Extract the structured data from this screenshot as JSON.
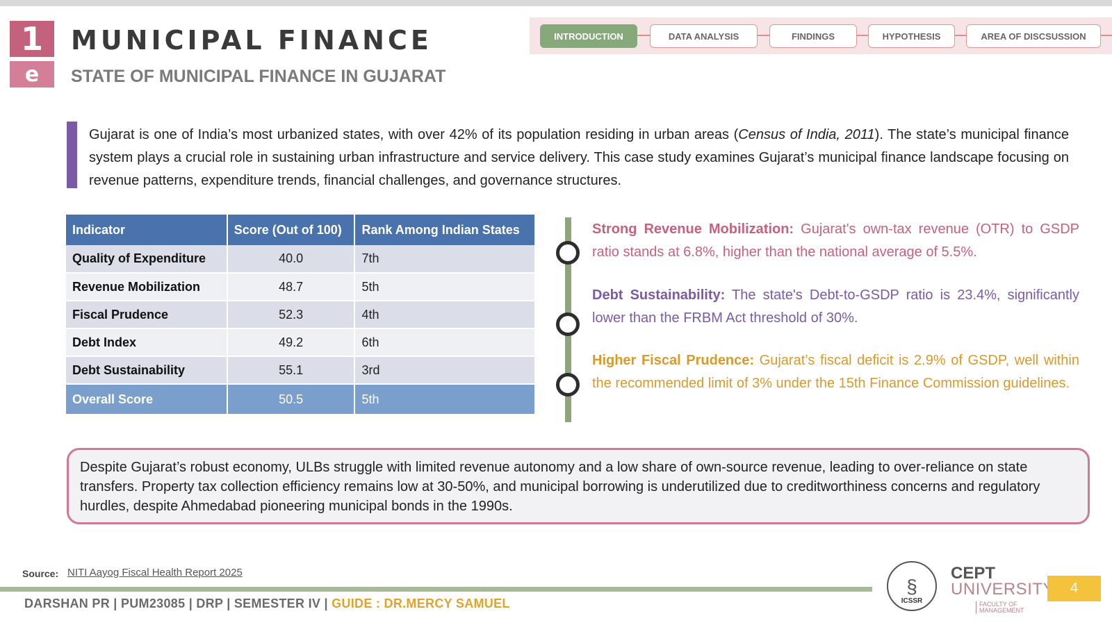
{
  "header": {
    "logo_top": "1",
    "logo_bottom": "e",
    "title": "MUNICIPAL FINANCE",
    "subtitle": "STATE OF MUNICIPAL FINANCE IN GUJARAT"
  },
  "nav": {
    "tabs": [
      {
        "label": "INTRODUCTION",
        "active": true
      },
      {
        "label": "DATA ANALYSIS",
        "active": false
      },
      {
        "label": "FINDINGS",
        "active": false
      },
      {
        "label": "HYPOTHESIS",
        "active": false
      },
      {
        "label": "AREA OF DISCSUSSION",
        "active": false
      }
    ]
  },
  "intro": {
    "text_before": "Gujarat is one of India’s most urbanized states, with over 42% of its population residing in urban areas (",
    "citation": "Census of India, 2011",
    "text_after": "). The state’s municipal finance system plays a crucial role in sustaining urban infrastructure and service delivery. This case study examines Gujarat’s municipal finance landscape focusing on revenue patterns, expenditure trends, financial challenges, and governance structures."
  },
  "table": {
    "headers": [
      "Indicator",
      "Score (Out of 100)",
      "Rank Among Indian States"
    ],
    "rows": [
      [
        "Quality of Expenditure",
        "40.0",
        "7th"
      ],
      [
        "Revenue Mobilization",
        "48.7",
        "5th"
      ],
      [
        "Fiscal Prudence",
        "52.3",
        "4th"
      ],
      [
        "Debt Index",
        "49.2",
        "6th"
      ],
      [
        "Debt Sustainability",
        "55.1",
        "3rd"
      ]
    ],
    "total": [
      "Overall Score",
      "50.5",
      "5th"
    ]
  },
  "points": [
    {
      "heading": "Strong Revenue Mobilization:",
      "text": " Gujarat's own-tax revenue (OTR) to GSDP ratio stands at 6.8%, higher than the national average of 5.5%.",
      "color": "#c5627e"
    },
    {
      "heading": "Debt Sustainability:",
      "text": " The state's Debt-to-GSDP ratio is 23.4%, significantly lower than the FRBM Act threshold of 30%.",
      "color": "#7b5aa6"
    },
    {
      "heading": "Higher Fiscal Prudence:",
      "text": " Gujarat’s fiscal deficit is 2.9% of GSDP, well within the recommended limit of 3% under the 15th Finance Commission guidelines.",
      "color": "#d79b2c"
    }
  ],
  "note": "Despite Gujarat’s robust economy, ULBs struggle with limited revenue autonomy and a low share of own-source revenue, leading to over-reliance on state transfers. Property tax collection efficiency remains low at 30-50%, and municipal borrowing is underutilized due to creditworthiness concerns and regulatory hurdles, despite Ahmedabad pioneering municipal bonds in the 1990s.",
  "source": {
    "label": "Source:",
    "link_text": "NITI Aayog Fiscal Health Report 2025"
  },
  "footer": {
    "text": "DARSHAN PR | PUM23085 | DRP | SEMESTER IV | ",
    "guide": "GUIDE : DR.MERCY SAMUEL"
  },
  "logos": {
    "icssr": "ICSSR",
    "cept": "CEPT",
    "university": "UNIVERSITY",
    "faculty": "FACULTY OF MANAGEMENT"
  },
  "page_number": "4",
  "colors": {
    "accent_pink": "#c4617d",
    "accent_purple": "#7b5aa6",
    "accent_green": "#86a87a",
    "accent_gold": "#d79b2c",
    "table_header": "#4a72ac"
  }
}
